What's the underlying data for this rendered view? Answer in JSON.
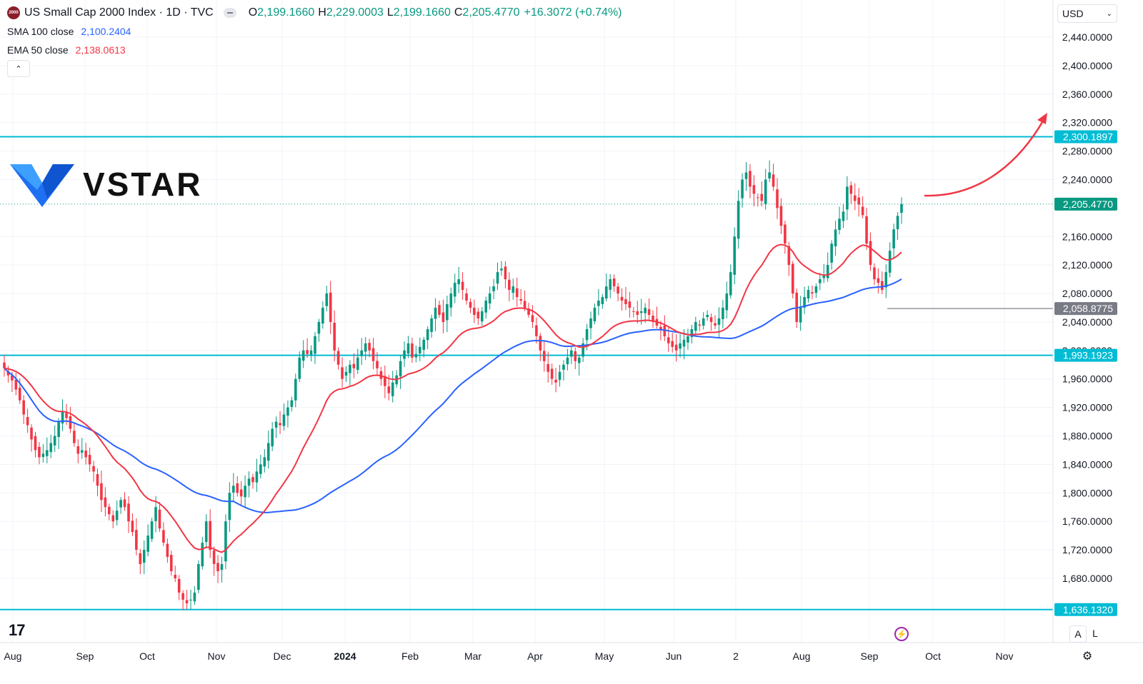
{
  "header": {
    "logo_text": "2000",
    "title": "US Small Cap 2000 Index · 1D · TVC",
    "open_label": "O",
    "open": "2,199.1660",
    "high_label": "H",
    "high": "2,229.0003",
    "low_label": "L",
    "low": "2,199.1660",
    "close_label": "C",
    "close": "2,205.4770",
    "change": "+16.3072 (+0.74%)"
  },
  "indicators": {
    "sma_label": "SMA 100 close",
    "sma_value": "2,100.2404",
    "ema_label": "EMA 50 close",
    "ema_value": "2,138.0613"
  },
  "controls": {
    "collapse_glyph": "⌃",
    "currency": "USD",
    "currency_caret": "⌄",
    "btn_a": "A",
    "btn_l": "L",
    "settings_glyph": "⚙",
    "flash_glyph": "⚡"
  },
  "watermark": {
    "text": "VSTAR",
    "tv_logo": "17"
  },
  "colors": {
    "up": "#089981",
    "down": "#f23645",
    "sma": "#2962ff",
    "ema": "#f23645",
    "level": "#00bcd4",
    "arrow": "#f23645",
    "price_tag": "#089981",
    "low_tag": "#787b86"
  },
  "chart_data": {
    "type": "candlestick",
    "title": "US Small Cap 2000 Index · 1D · TVC",
    "ylim": [
      1620,
      2470
    ],
    "y_ticks": [
      "2,440.0000",
      "2,400.0000",
      "2,360.0000",
      "2,320.0000",
      "2,280.0000",
      "2,240.0000",
      "2,160.0000",
      "2,120.0000",
      "2,080.0000",
      "2,040.0000",
      "2,000.0000",
      "1,960.0000",
      "1,920.0000",
      "1,880.0000",
      "1,840.0000",
      "1,800.0000",
      "1,760.0000",
      "1,720.0000",
      "1,680.0000"
    ],
    "x_ticks": [
      "Aug",
      "Sep",
      "Oct",
      "Nov",
      "Dec",
      "2024",
      "Feb",
      "Mar",
      "Apr",
      "May",
      "Jun",
      "2",
      "Aug",
      "Sep",
      "Oct",
      "Nov"
    ],
    "price_labels": {
      "resistance": "2,300.1897",
      "last": "2,205.4770",
      "swing_low": "2,058.8775",
      "support": "1,993.1923",
      "bottom": "1,636.1320"
    },
    "levels": [
      2300.1897,
      1993.1923,
      1636.132
    ],
    "last_price": 2205.477,
    "swing_low_price": 2058.8775,
    "close_series": [
      1975,
      1965,
      1958,
      1945,
      1930,
      1910,
      1895,
      1875,
      1860,
      1850,
      1855,
      1860,
      1870,
      1880,
      1900,
      1915,
      1905,
      1890,
      1870,
      1855,
      1860,
      1850,
      1840,
      1830,
      1810,
      1790,
      1780,
      1770,
      1760,
      1775,
      1790,
      1780,
      1760,
      1745,
      1720,
      1700,
      1720,
      1740,
      1760,
      1780,
      1750,
      1730,
      1710,
      1690,
      1680,
      1660,
      1650,
      1645,
      1650,
      1660,
      1700,
      1730,
      1760,
      1720,
      1700,
      1690,
      1700,
      1760,
      1800,
      1810,
      1800,
      1795,
      1810,
      1820,
      1815,
      1830,
      1840,
      1850,
      1870,
      1890,
      1900,
      1895,
      1910,
      1920,
      1930,
      1960,
      1990,
      2000,
      1995,
      2000,
      2020,
      2040,
      2060,
      2080,
      2040,
      2000,
      1980,
      1960,
      1970,
      1980,
      1975,
      1990,
      2000,
      2010,
      2000,
      1985,
      1975,
      1960,
      1950,
      1940,
      1955,
      1965,
      1985,
      2000,
      2010,
      1990,
      1995,
      2005,
      2015,
      2030,
      2045,
      2060,
      2050,
      2040,
      2065,
      2080,
      2095,
      2100,
      2085,
      2070,
      2060,
      2050,
      2045,
      2055,
      2070,
      2080,
      2090,
      2110,
      2115,
      2100,
      2085,
      2090,
      2075,
      2070,
      2060,
      2050,
      2040,
      2020,
      2000,
      1985,
      1970,
      1960,
      1955,
      1970,
      1980,
      1990,
      2000,
      1985,
      1990,
      2010,
      2030,
      2045,
      2060,
      2070,
      2075,
      2090,
      2100,
      2090,
      2080,
      2070,
      2065,
      2060,
      2055,
      2050,
      2055,
      2060,
      2050,
      2040,
      2035,
      2030,
      2020,
      2010,
      2005,
      2000,
      2010,
      2015,
      2020,
      2030,
      2040,
      2035,
      2045,
      2050,
      2040,
      2035,
      2045,
      2060,
      2080,
      2110,
      2160,
      2210,
      2240,
      2250,
      2230,
      2220,
      2215,
      2210,
      2240,
      2250,
      2230,
      2200,
      2175,
      2150,
      2120,
      2080,
      2040,
      2060,
      2075,
      2085,
      2080,
      2090,
      2100,
      2105,
      2120,
      2150,
      2170,
      2185,
      2195,
      2230,
      2220,
      2210,
      2205,
      2190,
      2150,
      2120,
      2100,
      2095,
      2085,
      2110,
      2140,
      2170,
      2189,
      2205.477
    ],
    "sma100_final": 2100.2404,
    "ema50_final": 2138.0613
  }
}
